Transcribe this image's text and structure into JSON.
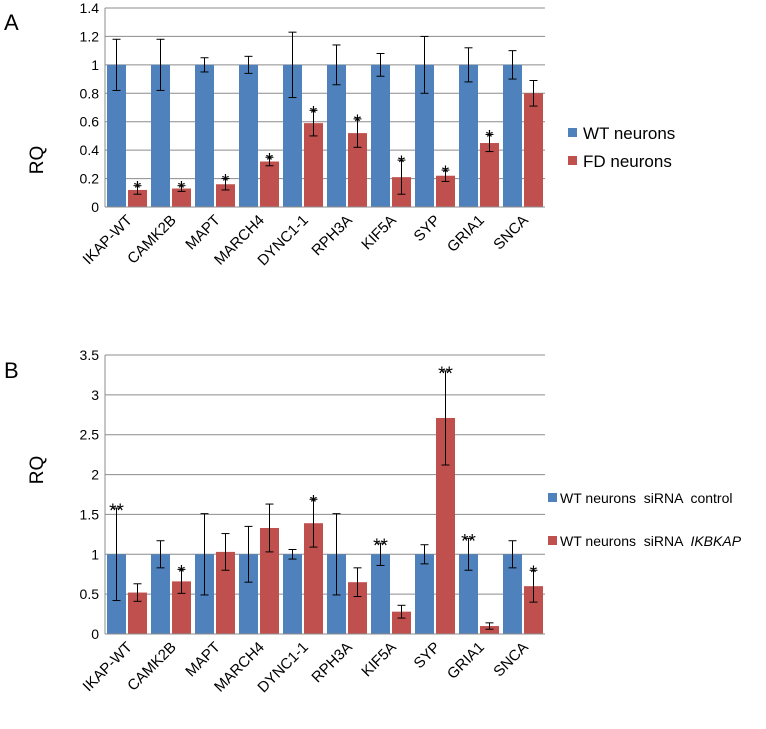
{
  "chart_data": [
    {
      "type": "bar",
      "panel_label": "A",
      "ylabel": "RQ",
      "ylim": [
        0,
        1.4
      ],
      "yticks": [
        "0",
        "0.2",
        "0.4",
        "0.6",
        "0.8",
        "1",
        "1.2",
        "1.4"
      ],
      "ytick_values": [
        0,
        0.2,
        0.4,
        0.6,
        0.8,
        1.0,
        1.2,
        1.4
      ],
      "grid": true,
      "legend_position": "right",
      "categories": [
        "IKAP-WT",
        "CAMK2B",
        "MAPT",
        "MARCH4",
        "DYNC1-1",
        "RPH3A",
        "KIF5A",
        "SYP",
        "GRIA1",
        "SNCA"
      ],
      "series": [
        {
          "name": "WT neurons",
          "color": "#4f81bd",
          "values": [
            1,
            1,
            1,
            1,
            1,
            1,
            1,
            1,
            1,
            1
          ],
          "errors": [
            0.18,
            0.18,
            0.05,
            0.06,
            0.23,
            0.14,
            0.08,
            0.2,
            0.12,
            0.1
          ]
        },
        {
          "name": "FD neurons",
          "color": "#c0504d",
          "values": [
            0.12,
            0.13,
            0.16,
            0.32,
            0.59,
            0.52,
            0.21,
            0.22,
            0.45,
            0.8
          ],
          "errors": [
            0.03,
            0.02,
            0.04,
            0.03,
            0.09,
            0.1,
            0.12,
            0.04,
            0.06,
            0.09
          ]
        }
      ],
      "annotations": [
        {
          "category": "IKAP-WT",
          "text": "*"
        },
        {
          "category": "CAMK2B",
          "text": "*"
        },
        {
          "category": "MAPT",
          "text": "*"
        },
        {
          "category": "MARCH4",
          "text": "*"
        },
        {
          "category": "DYNC1-1",
          "text": "*"
        },
        {
          "category": "RPH3A",
          "text": "*"
        },
        {
          "category": "KIF5A",
          "text": "*"
        },
        {
          "category": "SYP",
          "text": "*"
        },
        {
          "category": "GRIA1",
          "text": "*"
        }
      ]
    },
    {
      "type": "bar",
      "panel_label": "B",
      "ylabel": "RQ",
      "ylim": [
        0,
        3.5
      ],
      "yticks": [
        "0",
        "0.5",
        "1",
        "1.5",
        "2",
        "2.5",
        "3",
        "3.5"
      ],
      "ytick_values": [
        0,
        0.5,
        1.0,
        1.5,
        2.0,
        2.5,
        3.0,
        3.5
      ],
      "grid": true,
      "legend_position": "right",
      "categories": [
        "IKAP-WT",
        "CAMK2B",
        "MAPT",
        "MARCH4",
        "DYNC1-1",
        "RPH3A",
        "KIF5A",
        "SYP",
        "GRIA1",
        "SNCA"
      ],
      "series": [
        {
          "name": "WT neurons  siRNA  control",
          "name_main": "WT neurons  siRNA  control",
          "name_italic": "",
          "color": "#4f81bd",
          "values": [
            1,
            1,
            1,
            1,
            1,
            1,
            1,
            1,
            1,
            1
          ],
          "errors": [
            0.58,
            0.17,
            0.51,
            0.35,
            0.06,
            0.51,
            0.14,
            0.12,
            0.2,
            0.17
          ]
        },
        {
          "name": "WT neurons  siRNA  IKBKAP",
          "name_main": "WT neurons  siRNA  ",
          "name_italic": "IKBKAP",
          "color": "#c0504d",
          "values": [
            0.52,
            0.66,
            1.03,
            1.33,
            1.39,
            0.65,
            0.28,
            2.71,
            0.1,
            0.6
          ],
          "errors": [
            0.11,
            0.15,
            0.23,
            0.3,
            0.3,
            0.18,
            0.08,
            0.59,
            0.04,
            0.2
          ]
        }
      ],
      "annotations": [
        {
          "category": "IKAP-WT",
          "text": "**",
          "series": 0
        },
        {
          "category": "CAMK2B",
          "text": "*",
          "series": 1
        },
        {
          "category": "DYNC1-1",
          "text": "*",
          "series": 1
        },
        {
          "category": "KIF5A",
          "text": "**",
          "series": 0
        },
        {
          "category": "SYP",
          "text": "**",
          "series": 1
        },
        {
          "category": "GRIA1",
          "text": "**",
          "series": 0
        },
        {
          "category": "SNCA",
          "text": "*",
          "series": 1
        }
      ]
    }
  ]
}
